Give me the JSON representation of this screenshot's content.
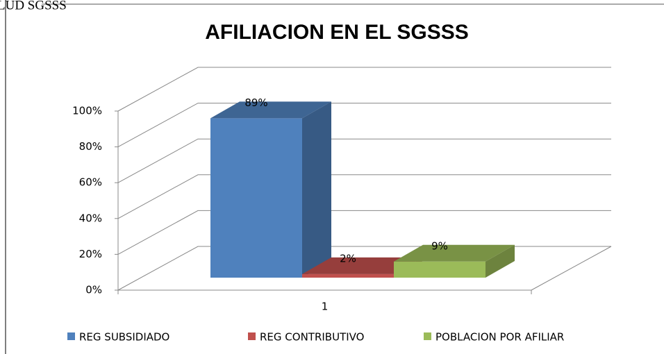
{
  "page_text": "LUD SGSSS",
  "chart_data": {
    "type": "bar3d",
    "title": "AFILIACION EN EL SGSSS",
    "categories": [
      "1"
    ],
    "series": [
      {
        "name": "REG SUBSIDIADO",
        "color": "#4f81bd",
        "values": [
          89
        ],
        "value_labels": [
          "89%"
        ]
      },
      {
        "name": "REG CONTRIBUTIVO",
        "color": "#c0504d",
        "values": [
          2
        ],
        "value_labels": [
          "2%"
        ]
      },
      {
        "name": "POBLACION POR AFILIAR",
        "color": "#9bbb59",
        "values": [
          9
        ],
        "value_labels": [
          "9%"
        ]
      }
    ],
    "ylim": [
      0,
      100
    ],
    "yticks": [
      {
        "value": 0,
        "label": "0%"
      },
      {
        "value": 20,
        "label": "20%"
      },
      {
        "value": 40,
        "label": "40%"
      },
      {
        "value": 60,
        "label": "60%"
      },
      {
        "value": 80,
        "label": "80%"
      },
      {
        "value": 100,
        "label": "100%"
      }
    ],
    "grid": true,
    "legend": "bottom"
  }
}
